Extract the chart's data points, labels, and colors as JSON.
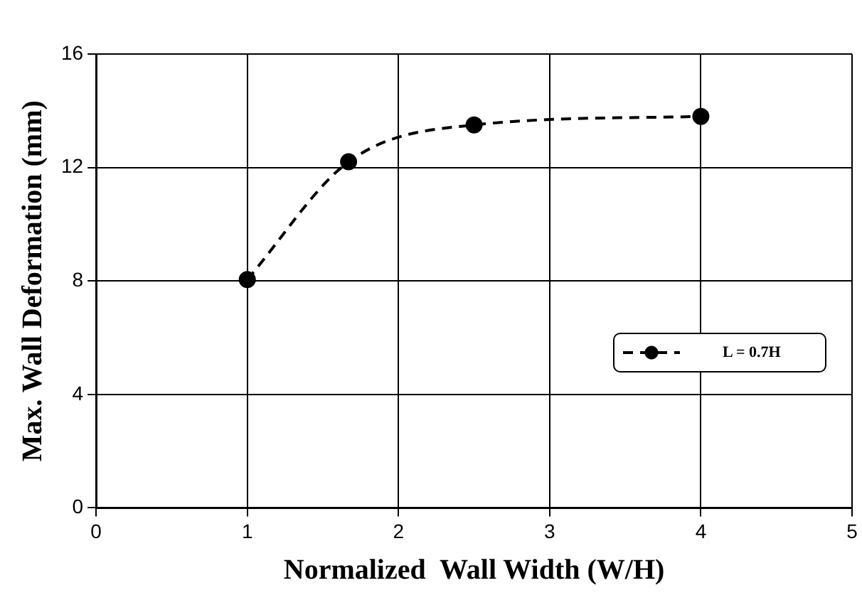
{
  "chart_data": {
    "type": "line",
    "xlabel": "Normalized  Wall Width (W/H)",
    "ylabel": "Max. Wall Deformation (mm)",
    "x": [
      1,
      1.67,
      2.5,
      4
    ],
    "series": [
      {
        "name": "L = 0.7H",
        "color": "#000000",
        "values": [
          8.05,
          12.2,
          13.5,
          13.8
        ]
      }
    ],
    "xlim": [
      0,
      5
    ],
    "xticks": [
      0,
      1,
      2,
      3,
      4,
      5
    ],
    "ylim": [
      0,
      16
    ],
    "yticks": [
      0,
      4,
      8,
      12,
      16
    ],
    "grid": true,
    "legend": "right",
    "marker": "circle",
    "line_style": "dashed"
  }
}
